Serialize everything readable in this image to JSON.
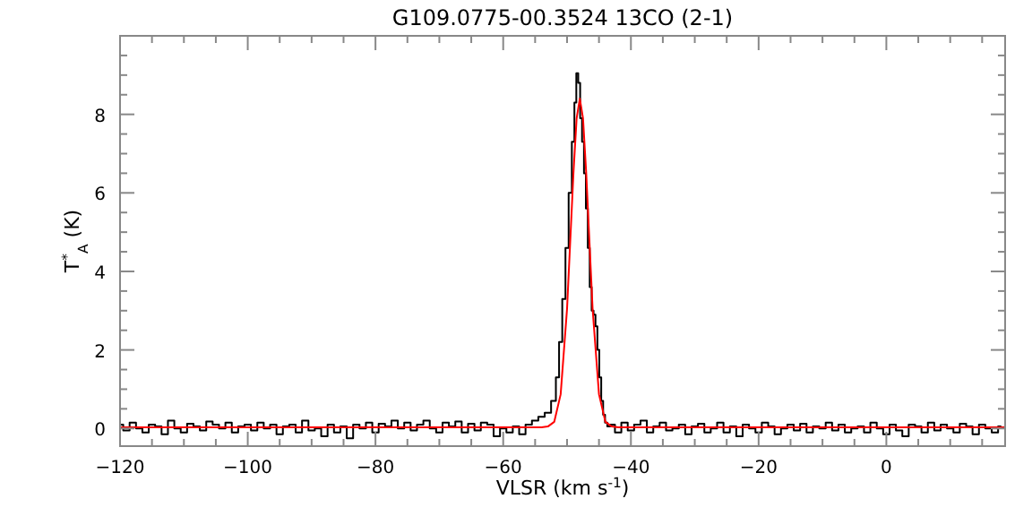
{
  "chart_data": {
    "type": "line",
    "title": "G109.0775-00.3524 13CO (2-1)",
    "xlabel": "VLSR (km s$^{-1}$)",
    "ylabel": "T$^{*}$$_{A}$ (K)",
    "xlim": [
      -120,
      18.6
    ],
    "ylim": [
      -0.45,
      10
    ],
    "xticks": [
      -120,
      {
        "value": -115,
        "label": null
      },
      {
        "value": -110,
        "label": null
      },
      {
        "value": -105,
        "label": null
      },
      -100,
      {
        "value": -95,
        "label": null
      },
      {
        "value": -90,
        "label": null
      },
      {
        "value": -85,
        "label": null
      },
      -80,
      {
        "value": -75,
        "label": null
      },
      {
        "value": -70,
        "label": null
      },
      {
        "value": -65,
        "label": null
      },
      -60,
      {
        "value": -55,
        "label": null
      },
      {
        "value": -50,
        "label": null
      },
      {
        "value": -45,
        "label": null
      },
      -40,
      {
        "value": -35,
        "label": null
      },
      {
        "value": -30,
        "label": null
      },
      {
        "value": -25,
        "label": null
      },
      -20,
      {
        "value": -15,
        "label": null
      },
      {
        "value": -10,
        "label": null
      },
      {
        "value": -5,
        "label": null
      },
      0,
      {
        "value": 5,
        "label": null
      },
      {
        "value": 10,
        "label": null
      },
      {
        "value": 15,
        "label": null
      }
    ],
    "yticks": [
      0,
      {
        "value": 0.5,
        "label": null
      },
      {
        "value": 1,
        "label": null
      },
      {
        "value": 1.5,
        "label": null
      },
      2,
      {
        "value": 2.5,
        "label": null
      },
      {
        "value": 3,
        "label": null
      },
      {
        "value": 3.5,
        "label": null
      },
      4,
      {
        "value": 4.5,
        "label": null
      },
      {
        "value": 5,
        "label": null
      },
      {
        "value": 5.5,
        "label": null
      },
      6,
      {
        "value": 6.5,
        "label": null
      },
      {
        "value": 7,
        "label": null
      },
      {
        "value": 7.5,
        "label": null
      },
      8,
      {
        "value": 8.5,
        "label": null
      },
      {
        "value": 9,
        "label": null
      },
      {
        "value": 9.5,
        "label": null
      }
    ],
    "grid": false,
    "series": [
      {
        "type": "step",
        "color": "#000000",
        "x": [
          -120,
          -119,
          -118,
          -117,
          -116,
          -115,
          -114,
          -113,
          -112,
          -111,
          -110,
          -109,
          -108,
          -107,
          -106,
          -105,
          -104,
          -103,
          -102,
          -101,
          -100,
          -99,
          -98,
          -97,
          -96,
          -95,
          -94,
          -93,
          -92,
          -91,
          -90,
          -89,
          -88,
          -87,
          -86,
          -85,
          -84,
          -83,
          -82,
          -81,
          -80,
          -79,
          -78,
          -77,
          -76,
          -75,
          -74,
          -73,
          -72,
          -71,
          -70,
          -69,
          -68,
          -67,
          -66,
          -65,
          -64,
          -63,
          -62,
          -61,
          -60,
          -59,
          -58,
          -57,
          -56,
          -55,
          -54,
          -53,
          -52,
          -51.5,
          -51,
          -50.5,
          -50,
          -49.5,
          -49,
          -48.7,
          -48.4,
          -48.1,
          -47.8,
          -47.5,
          -47.2,
          -46.9,
          -46.6,
          -46.3,
          -46,
          -45.7,
          -45.4,
          -45.1,
          -44.8,
          -44.5,
          -44.2,
          -43.9,
          -43.5,
          -43,
          -42,
          -41,
          -40,
          -39,
          -38,
          -37,
          -36,
          -35,
          -34,
          -33,
          -32,
          -31,
          -30,
          -29,
          -28,
          -27,
          -26,
          -25,
          -24,
          -23,
          -22,
          -21,
          -20,
          -19,
          -18,
          -17,
          -16,
          -15,
          -14,
          -13,
          -12,
          -11,
          -10,
          -9,
          -8,
          -7,
          -6,
          -5,
          -4,
          -3,
          -2,
          -1,
          0,
          1,
          2,
          3,
          4,
          5,
          6,
          7,
          8,
          9,
          10,
          11,
          12,
          13,
          14,
          15,
          16,
          17,
          18
        ],
        "values": [
          0.1,
          -0.05,
          0.15,
          0.0,
          -0.1,
          0.1,
          0.05,
          -0.15,
          0.2,
          0.0,
          -0.1,
          0.12,
          0.05,
          -0.05,
          0.18,
          0.1,
          0.0,
          0.15,
          -0.1,
          0.05,
          0.1,
          -0.05,
          0.15,
          0.0,
          0.1,
          -0.15,
          0.05,
          0.1,
          -0.1,
          0.2,
          -0.05,
          0.0,
          -0.2,
          0.1,
          -0.1,
          0.05,
          -0.25,
          0.1,
          0.0,
          0.15,
          -0.1,
          0.12,
          0.05,
          0.2,
          0.0,
          0.15,
          -0.05,
          0.1,
          0.2,
          0.0,
          -0.1,
          0.15,
          0.05,
          0.18,
          -0.1,
          0.12,
          -0.05,
          0.15,
          0.1,
          -0.2,
          0.0,
          -0.1,
          0.05,
          -0.15,
          0.1,
          0.2,
          0.3,
          0.4,
          0.7,
          1.3,
          2.2,
          3.3,
          4.6,
          6.0,
          7.3,
          8.3,
          9.05,
          8.8,
          7.9,
          7.3,
          6.5,
          5.6,
          4.6,
          3.6,
          3.0,
          2.9,
          2.6,
          2.0,
          1.3,
          0.7,
          0.35,
          0.15,
          0.05,
          0.1,
          -0.1,
          0.15,
          -0.05,
          0.1,
          0.2,
          -0.1,
          0.05,
          0.15,
          -0.05,
          0.0,
          0.1,
          -0.15,
          0.05,
          0.12,
          -0.1,
          0.0,
          0.15,
          -0.1,
          0.05,
          -0.2,
          0.1,
          0.0,
          -0.1,
          0.15,
          0.05,
          -0.15,
          0.0,
          0.1,
          -0.05,
          0.12,
          -0.1,
          0.05,
          0.0,
          0.15,
          -0.05,
          0.1,
          -0.1,
          0.0,
          0.05,
          -0.1,
          0.15,
          0.0,
          -0.15,
          0.1,
          -0.05,
          -0.2,
          0.1,
          0.05,
          -0.1,
          0.15,
          -0.05,
          0.1,
          0.0,
          -0.1,
          0.12,
          0.05,
          -0.15,
          0.1,
          0.0,
          -0.1,
          0.05
        ]
      },
      {
        "color": "#ff0000",
        "x": [
          -120,
          -56,
          -54,
          -53,
          -52,
          -51,
          -50,
          -49,
          -48.5,
          -48,
          -47.5,
          -47,
          -46,
          -45,
          -44,
          -43,
          -42,
          -40,
          18.6
        ],
        "values": [
          0.03,
          0.03,
          0.03,
          0.05,
          0.17,
          0.87,
          3.05,
          6.5,
          7.9,
          8.4,
          7.9,
          6.5,
          3.05,
          0.87,
          0.17,
          0.05,
          0.03,
          0.03,
          0.03
        ]
      }
    ]
  }
}
